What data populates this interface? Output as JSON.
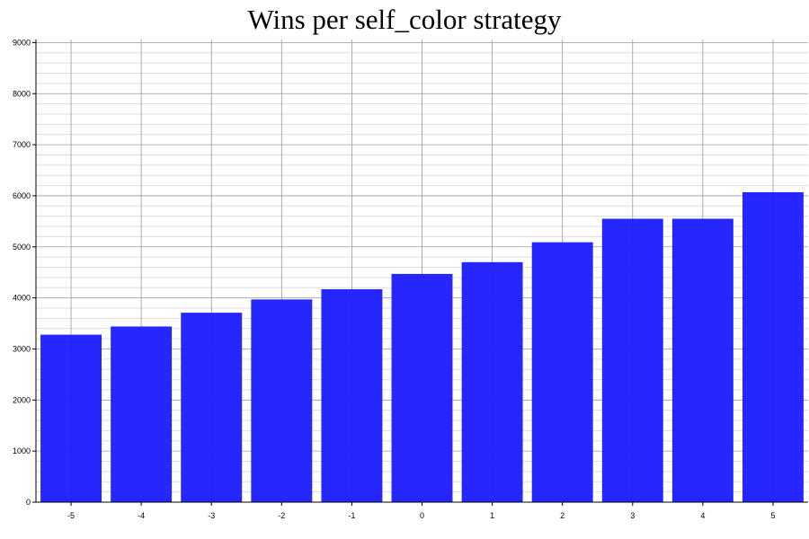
{
  "chart_data": {
    "type": "bar",
    "title": "Wins per self_color strategy",
    "xlabel": "",
    "ylabel": "",
    "categories": [
      "-5",
      "-4",
      "-3",
      "-2",
      "-1",
      "0",
      "1",
      "2",
      "3",
      "4",
      "5"
    ],
    "values": [
      3280,
      3440,
      3710,
      3970,
      4170,
      4470,
      4700,
      5090,
      5550,
      5550,
      6070
    ],
    "ylim": [
      0,
      9000
    ],
    "yticks": [
      0,
      1000,
      2000,
      3000,
      4000,
      5000,
      6000,
      7000,
      8000,
      9000
    ],
    "minor_grid_step": 200,
    "grid": true,
    "bar_color": "#1f1fff",
    "major_grid_color": "#999999",
    "minor_grid_color": "#dddddd"
  }
}
